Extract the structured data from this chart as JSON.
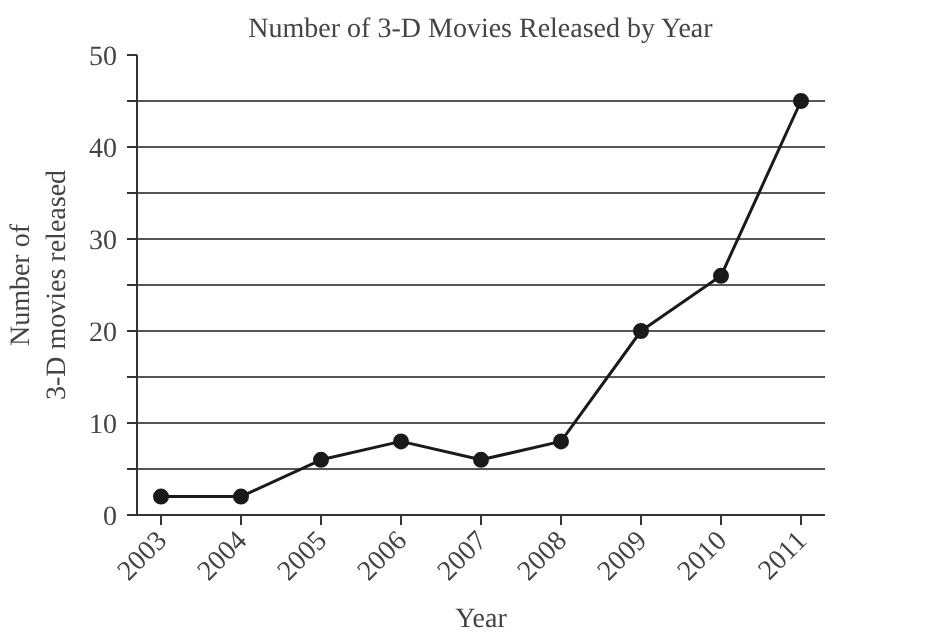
{
  "chart_data": {
    "type": "line",
    "title": "Number of 3-D Movies Released by Year",
    "xlabel": "Year",
    "ylabel": "Number of\n3-D movies released",
    "x": [
      2003,
      2004,
      2005,
      2006,
      2007,
      2008,
      2009,
      2010,
      2011
    ],
    "series": [
      {
        "color": "#1a1a1a",
        "values": [
          2,
          2,
          6,
          8,
          6,
          8,
          20,
          26,
          45
        ]
      }
    ],
    "xlim": [
      2002.7,
      2011.3
    ],
    "xticks": [
      2003,
      2004,
      2005,
      2006,
      2007,
      2008,
      2009,
      2010,
      2011
    ],
    "ylim": [
      0,
      50
    ],
    "yticks": [
      0,
      {
        "value": 5,
        "label": null
      },
      10,
      {
        "value": 15,
        "label": null
      },
      20,
      {
        "value": 25,
        "label": null
      },
      30,
      {
        "value": 35,
        "label": null
      },
      40,
      {
        "value": 45,
        "label": null
      },
      50
    ],
    "grid": "y",
    "marker": "circle",
    "line_style": "solid"
  }
}
